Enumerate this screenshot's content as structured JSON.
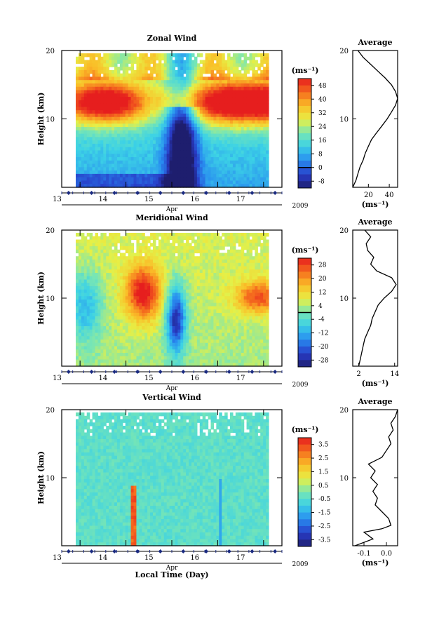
{
  "chart_data": [
    {
      "type": "heatmap",
      "title": "Zonal Wind",
      "ylabel": "Height (km)",
      "yticks": [
        10,
        20
      ],
      "ylim": [
        0,
        20
      ],
      "x_ticks": [
        "13",
        "14",
        "15",
        "16",
        "17"
      ],
      "x_range_days": [
        12.6,
        17.4
      ],
      "month": "Apr",
      "year": "2009",
      "colorbar": {
        "unit": "(ms⁻¹)",
        "ticks": [
          "48",
          "40",
          "32",
          "24",
          "16",
          "8",
          "0",
          "-8"
        ],
        "min": -12,
        "max": 52,
        "zero_line": 0
      },
      "profile": {
        "title": "Average",
        "xlabel": "(ms⁻¹)",
        "xticks": [
          "20",
          "40"
        ],
        "xtick_values": [
          20,
          40
        ],
        "xlim": [
          5,
          48
        ],
        "ylim": [
          0,
          20
        ],
        "yticks": [
          10,
          20
        ],
        "points": [
          [
            5,
            0
          ],
          [
            8,
            1
          ],
          [
            10,
            2
          ],
          [
            12,
            3
          ],
          [
            15,
            4
          ],
          [
            17,
            5
          ],
          [
            20,
            6
          ],
          [
            23,
            7
          ],
          [
            28,
            8
          ],
          [
            33,
            9
          ],
          [
            38,
            10
          ],
          [
            42,
            11
          ],
          [
            46,
            12
          ],
          [
            48,
            13
          ],
          [
            46,
            14
          ],
          [
            42,
            15
          ],
          [
            36,
            16
          ],
          [
            29,
            17
          ],
          [
            22,
            18
          ],
          [
            15,
            19
          ],
          [
            10,
            20
          ]
        ]
      }
    },
    {
      "type": "heatmap",
      "title": "Meridional Wind",
      "ylabel": "Height (km)",
      "yticks": [
        10,
        20
      ],
      "ylim": [
        0,
        20
      ],
      "x_ticks": [
        "13",
        "14",
        "15",
        "16",
        "17"
      ],
      "x_range_days": [
        12.6,
        17.4
      ],
      "month": "Apr",
      "year": "2009",
      "colorbar": {
        "unit": "(ms⁻¹)",
        "ticks": [
          "28",
          "20",
          "12",
          "4",
          "-4",
          "-12",
          "-20",
          "-28"
        ],
        "min": -32,
        "max": 32,
        "zero_line": 0
      },
      "profile": {
        "title": "Average",
        "xlabel": "(ms⁻¹)",
        "xticks": [
          "2",
          "14"
        ],
        "xtick_values": [
          2,
          14
        ],
        "xlim": [
          0,
          15
        ],
        "ylim": [
          0,
          20
        ],
        "yticks": [
          10,
          20
        ],
        "points": [
          [
            2,
            0
          ],
          [
            2.5,
            1
          ],
          [
            3,
            2
          ],
          [
            3.5,
            3
          ],
          [
            4,
            4
          ],
          [
            5,
            5
          ],
          [
            6,
            6
          ],
          [
            6.5,
            7
          ],
          [
            7.5,
            8
          ],
          [
            8.5,
            9
          ],
          [
            10.5,
            10
          ],
          [
            13,
            11
          ],
          [
            14.5,
            12
          ],
          [
            13,
            13
          ],
          [
            8,
            14
          ],
          [
            6,
            15
          ],
          [
            7,
            16
          ],
          [
            5,
            17
          ],
          [
            4.5,
            18
          ],
          [
            6,
            19
          ],
          [
            4,
            20
          ]
        ]
      }
    },
    {
      "type": "heatmap",
      "title": "Vertical Wind",
      "ylabel": "Height (km)",
      "xlabel": "Local Time (Day)",
      "yticks": [
        10,
        20
      ],
      "ylim": [
        0,
        20
      ],
      "x_ticks": [
        "13",
        "14",
        "15",
        "16",
        "17"
      ],
      "x_range_days": [
        12.6,
        17.4
      ],
      "month": "Apr",
      "year": "2009",
      "colorbar": {
        "unit": "(ms⁻¹)",
        "ticks": [
          "3.5",
          "2.5",
          "1.5",
          "0.5",
          "-0.5",
          "-1.5",
          "-2.5",
          "-3.5"
        ],
        "min": -4,
        "max": 4,
        "zero_line": null
      },
      "profile": {
        "title": "Average",
        "xlabel": "(ms⁻¹)",
        "xticks": [
          "-0.1",
          "0.0"
        ],
        "xtick_values": [
          -0.1,
          0.0
        ],
        "xlim": [
          -0.15,
          0.05
        ],
        "ylim": [
          0,
          20
        ],
        "yticks": [
          10,
          20
        ],
        "points": [
          [
            -0.14,
            0
          ],
          [
            -0.06,
            1
          ],
          [
            -0.1,
            2
          ],
          [
            -0.02,
            2.5
          ],
          [
            0.02,
            3
          ],
          [
            0.01,
            4
          ],
          [
            -0.02,
            5
          ],
          [
            -0.05,
            6
          ],
          [
            -0.04,
            7
          ],
          [
            -0.06,
            8
          ],
          [
            -0.04,
            9
          ],
          [
            -0.07,
            10
          ],
          [
            -0.05,
            11
          ],
          [
            -0.08,
            12
          ],
          [
            -0.02,
            13
          ],
          [
            0.0,
            14
          ],
          [
            0.02,
            15
          ],
          [
            0.01,
            16
          ],
          [
            0.03,
            17
          ],
          [
            0.02,
            18
          ],
          [
            0.04,
            19
          ],
          [
            0.05,
            20
          ]
        ]
      }
    }
  ]
}
